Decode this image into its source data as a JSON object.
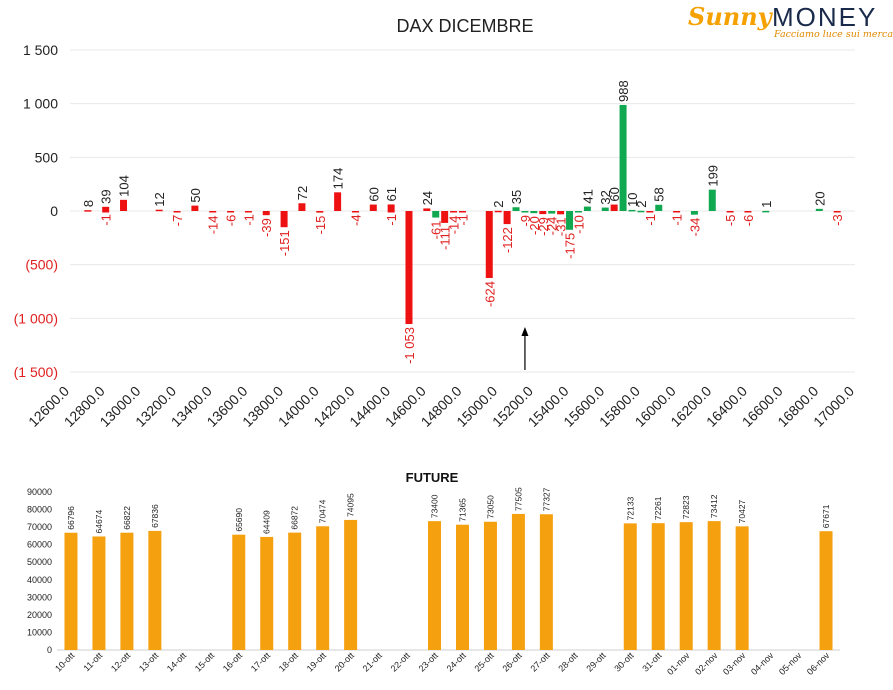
{
  "logo": {
    "brand": "Sunny",
    "word": "MONEY",
    "tagline": "Facciamo luce sui mercati"
  },
  "chart_data": [
    {
      "type": "bar",
      "title": "DAX DICEMBRE",
      "xlabel": "",
      "ylabel": "",
      "ylim": [
        -1500,
        1500
      ],
      "yticks": [
        "1 500",
        "1 000",
        "500",
        "0",
        "(500)",
        "(1 000)",
        "(1 500)"
      ],
      "ytick_values": [
        1500,
        1000,
        500,
        0,
        -500,
        -1000,
        -1500
      ],
      "categories": [
        "12600.0",
        "12800.0",
        "13000.0",
        "13200.0",
        "13400.0",
        "13600.0",
        "13800.0",
        "14000.0",
        "14200.0",
        "14400.0",
        "14600.0",
        "14800.0",
        "15000.0",
        "15200.0",
        "15400.0",
        "15600.0",
        "15800.0",
        "16000.0",
        "16200.0",
        "16400.0",
        "16600.0",
        "16800.0",
        "17000.0"
      ],
      "colors": {
        "positive_red": "#ee1111",
        "negative_red": "#ee1111",
        "positive_green": "#10a850",
        "label_neg": "#e02020",
        "label_pos": "#222222"
      },
      "series": [
        {
          "values": [
            {
              "x": 12700,
              "v": 8,
              "c": "red",
              "label": "8"
            },
            {
              "x": 12800,
              "v": 39,
              "c": "red",
              "label": "39"
            },
            {
              "x": 12800,
              "v": -1,
              "c": "red",
              "label": "-1"
            },
            {
              "x": 12900,
              "v": 104,
              "c": "red",
              "label": "104"
            },
            {
              "x": 13100,
              "v": 12,
              "c": "red",
              "label": "12"
            },
            {
              "x": 13200,
              "v": -7,
              "c": "red",
              "label": "-7"
            },
            {
              "x": 13300,
              "v": 50,
              "c": "red",
              "label": "50"
            },
            {
              "x": 13400,
              "v": -14,
              "c": "red",
              "label": "-14"
            },
            {
              "x": 13500,
              "v": -6,
              "c": "red",
              "label": "-6"
            },
            {
              "x": 13600,
              "v": -1,
              "c": "red",
              "label": "-1"
            },
            {
              "x": 13700,
              "v": -39,
              "c": "red",
              "label": "-39"
            },
            {
              "x": 13800,
              "v": -151,
              "c": "red",
              "label": "-151"
            },
            {
              "x": 13900,
              "v": 72,
              "c": "red",
              "label": "72"
            },
            {
              "x": 14000,
              "v": -15,
              "c": "red",
              "label": "-15"
            },
            {
              "x": 14100,
              "v": 174,
              "c": "red",
              "label": "174"
            },
            {
              "x": 14200,
              "v": -4,
              "c": "red",
              "label": "-4"
            },
            {
              "x": 14300,
              "v": 60,
              "c": "red",
              "label": "60"
            },
            {
              "x": 14400,
              "v": 61,
              "c": "red",
              "label": "61"
            },
            {
              "x": 14400,
              "v": -1,
              "c": "red",
              "label": "-1"
            },
            {
              "x": 14500,
              "v": -1053,
              "c": "red",
              "label": "-1 053"
            },
            {
              "x": 14600,
              "v": 24,
              "c": "red",
              "label": "24"
            },
            {
              "x": 14650,
              "v": -61,
              "c": "green",
              "label": "-61"
            },
            {
              "x": 14700,
              "v": -111,
              "c": "red",
              "label": "-111"
            },
            {
              "x": 14750,
              "v": -14,
              "c": "red",
              "label": "-14"
            },
            {
              "x": 14800,
              "v": -1,
              "c": "red",
              "label": "-1"
            },
            {
              "x": 14950,
              "v": -624,
              "c": "red",
              "label": "-624"
            },
            {
              "x": 15000,
              "v": 2,
              "c": "red",
              "label": "2"
            },
            {
              "x": 15050,
              "v": -122,
              "c": "red",
              "label": "-122"
            },
            {
              "x": 15100,
              "v": 35,
              "c": "green",
              "label": "35"
            },
            {
              "x": 15150,
              "v": -9,
              "c": "green",
              "label": "-9"
            },
            {
              "x": 15200,
              "v": -20,
              "c": "green",
              "label": "-20"
            },
            {
              "x": 15250,
              "v": -29,
              "c": "red",
              "label": "-29"
            },
            {
              "x": 15300,
              "v": -24,
              "c": "green",
              "label": "-24"
            },
            {
              "x": 15350,
              "v": -31,
              "c": "red",
              "label": "-31"
            },
            {
              "x": 15400,
              "v": -175,
              "c": "green",
              "label": "-175"
            },
            {
              "x": 15450,
              "v": -10,
              "c": "green",
              "label": "-10"
            },
            {
              "x": 15500,
              "v": 41,
              "c": "green",
              "label": "41"
            },
            {
              "x": 15600,
              "v": 32,
              "c": "green",
              "label": "32"
            },
            {
              "x": 15650,
              "v": 60,
              "c": "red",
              "label": "60"
            },
            {
              "x": 15700,
              "v": 988,
              "c": "green",
              "label": "988"
            },
            {
              "x": 15750,
              "v": 10,
              "c": "green",
              "label": "10"
            },
            {
              "x": 15800,
              "v": 2,
              "c": "green",
              "label": "2"
            },
            {
              "x": 15850,
              "v": -1,
              "c": "red",
              "label": "-1"
            },
            {
              "x": 15900,
              "v": 58,
              "c": "green",
              "label": "58"
            },
            {
              "x": 16000,
              "v": -1,
              "c": "red",
              "label": "-1"
            },
            {
              "x": 16100,
              "v": -34,
              "c": "green",
              "label": "-34"
            },
            {
              "x": 16200,
              "v": 199,
              "c": "green",
              "label": "199"
            },
            {
              "x": 16300,
              "v": -5,
              "c": "red",
              "label": "-5"
            },
            {
              "x": 16400,
              "v": -6,
              "c": "red",
              "label": "-6"
            },
            {
              "x": 16500,
              "v": 1,
              "c": "green",
              "label": "1"
            },
            {
              "x": 16800,
              "v": 20,
              "c": "green",
              "label": "20"
            },
            {
              "x": 16900,
              "v": -3,
              "c": "red",
              "label": "-3"
            }
          ]
        }
      ],
      "annotation_arrow_x": 15150
    },
    {
      "type": "bar",
      "title": "FUTURE",
      "xlabel": "",
      "ylabel": "",
      "ylim": [
        0,
        90000
      ],
      "yticks": [
        "90000",
        "80000",
        "70000",
        "60000",
        "50000",
        "40000",
        "30000",
        "20000",
        "10000",
        "0"
      ],
      "ytick_values": [
        90000,
        80000,
        70000,
        60000,
        50000,
        40000,
        30000,
        20000,
        10000,
        0
      ],
      "color": "#f5a00f",
      "categories": [
        "10-ott",
        "11-ott",
        "12-ott",
        "13-ott",
        "14-ott",
        "15-ott",
        "16-ott",
        "17-ott",
        "18-ott",
        "19-ott",
        "20-ott",
        "21-ott",
        "22-ott",
        "23-ott",
        "24-ott",
        "25-ott",
        "26-ott",
        "27-ott",
        "28-ott",
        "29-ott",
        "30-ott",
        "31-ott",
        "01-nov",
        "02-nov",
        "03-nov",
        "04-nov",
        "05-nov",
        "06-nov"
      ],
      "series": [
        {
          "values": [
            66796,
            64674,
            66822,
            67836,
            null,
            null,
            65690,
            64409,
            66872,
            70474,
            74095,
            null,
            null,
            73400,
            71365,
            73050,
            77505,
            77327,
            null,
            null,
            72133,
            72261,
            72823,
            73412,
            70427,
            null,
            null,
            67671
          ],
          "labels": [
            "66796",
            "64674",
            "66822",
            "67836",
            "",
            "",
            "65690",
            "64409",
            "66872",
            "70474",
            "74095",
            "",
            "",
            "73400",
            "71365",
            "73050",
            "77505",
            "77327",
            "",
            "",
            "72133",
            "72261",
            "72823",
            "73412",
            "70427",
            "",
            "",
            "67671"
          ]
        }
      ]
    }
  ]
}
